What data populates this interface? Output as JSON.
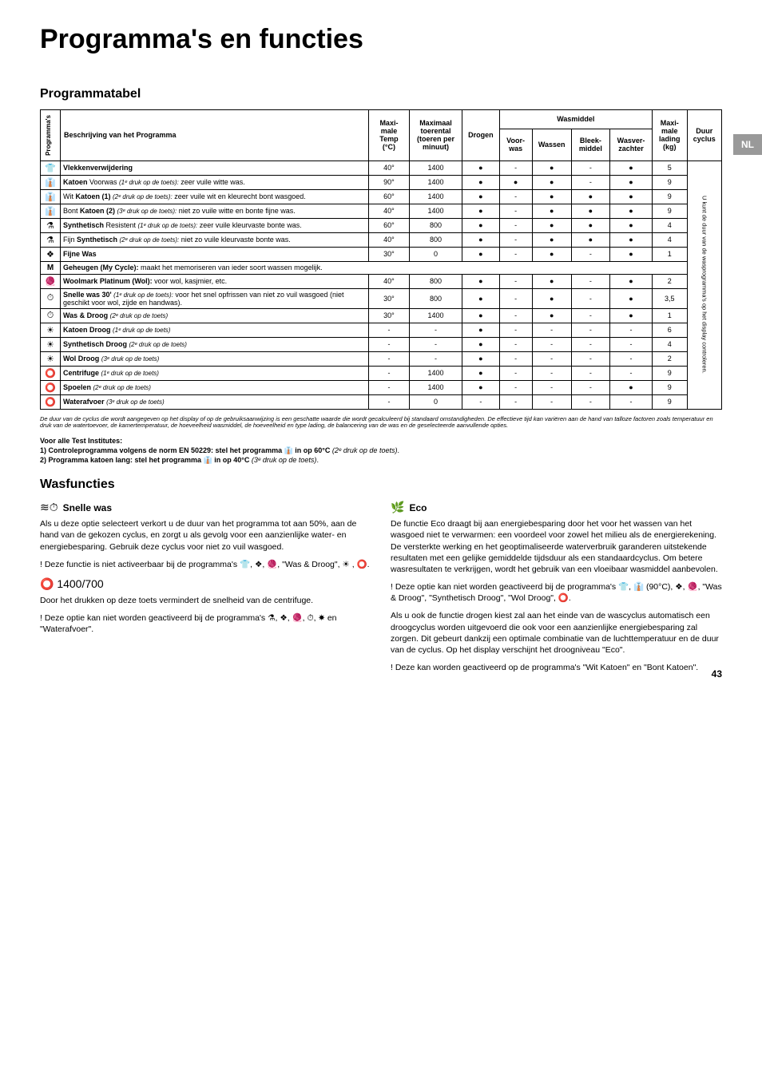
{
  "page_title": "Programma's en functies",
  "side_tab": "NL",
  "section_programmatabel": "Programmatabel",
  "headers": {
    "programmas": "Programma's",
    "beschrijving": "Beschrijving van het Programma",
    "max_temp_line1": "Maxi-",
    "max_temp_line2": "male",
    "max_temp_line3": "Temp",
    "max_temp_line4": "(°C)",
    "max_toer_line1": "Maximaal",
    "max_toer_line2": "toerental",
    "max_toer_line3": "(toeren per",
    "max_toer_line4": "minuut)",
    "drogen": "Drogen",
    "wasmiddel": "Wasmiddel",
    "voor_was": "Voor-\nwas",
    "wassen": "Wassen",
    "bleek_middel": "Bleek-\nmiddel",
    "wasver_zachter": "Wasver-\nzachter",
    "max_lading_line1": "Maxi-",
    "max_lading_line2": "male",
    "max_lading_line3": "lading",
    "max_lading_line4": "(kg)",
    "duur_cyclus": "Duur\ncyclus",
    "duur_side": "U kunt de duur van de wasprogramma's op het display controleren."
  },
  "rows": [
    {
      "icon": "👕",
      "desc": "<b>Vlekkenverwijdering</b>",
      "temp": "40°",
      "rpm": "1400",
      "drogen": "●",
      "voor": "-",
      "wassen": "●",
      "bleek": "-",
      "zachter": "●",
      "lading": "5"
    },
    {
      "icon": "👔",
      "desc": "<b>Katoen</b> Voorwas <i>(1ᵉ druk op de toets):</i> zeer vuile witte was.",
      "temp": "90°",
      "rpm": "1400",
      "drogen": "●",
      "voor": "●",
      "wassen": "●",
      "bleek": "-",
      "zachter": "●",
      "lading": "9"
    },
    {
      "icon": "👔",
      "desc": "Wit <b>Katoen (1)</b> <i>(2ᵉ druk op de toets):</i> zeer vuile wit en kleurecht bont wasgoed.",
      "temp": "60°",
      "rpm": "1400",
      "drogen": "●",
      "voor": "-",
      "wassen": "●",
      "bleek": "●",
      "zachter": "●",
      "lading": "9"
    },
    {
      "icon": "👔",
      "desc": "Bont <b>Katoen (2)</b> <i>(3ᵉ druk op de toets):</i> niet zo vuile witte en bonte fijne was.",
      "temp": "40°",
      "rpm": "1400",
      "drogen": "●",
      "voor": "-",
      "wassen": "●",
      "bleek": "●",
      "zachter": "●",
      "lading": "9"
    },
    {
      "icon": "⚗",
      "desc": "<b>Synthetisch</b> Resistent <i>(1ᵉ druk op de toets):</i> zeer vuile kleurvaste bonte was.",
      "temp": "60°",
      "rpm": "800",
      "drogen": "●",
      "voor": "-",
      "wassen": "●",
      "bleek": "●",
      "zachter": "●",
      "lading": "4"
    },
    {
      "icon": "⚗",
      "desc": "Fijn <b>Synthetisch</b> <i>(2ᵉ druk op de toets):</i> niet zo vuile kleurvaste bonte was.",
      "temp": "40°",
      "rpm": "800",
      "drogen": "●",
      "voor": "-",
      "wassen": "●",
      "bleek": "●",
      "zachter": "●",
      "lading": "4"
    },
    {
      "icon": "❖",
      "desc": "<b>Fijne Was</b>",
      "temp": "30°",
      "rpm": "0",
      "drogen": "●",
      "voor": "-",
      "wassen": "●",
      "bleek": "-",
      "zachter": "●",
      "lading": "1"
    },
    {
      "icon": "M",
      "desc": "<b>Geheugen (My Cycle):</b> maakt het memoriseren van ieder soort wassen mogelijk.",
      "span": true
    },
    {
      "icon": "🧶",
      "desc": "<b>Woolmark Platinum (Wol):</b> voor wol, kasjmier, etc.",
      "temp": "40°",
      "rpm": "800",
      "drogen": "●",
      "voor": "-",
      "wassen": "●",
      "bleek": "-",
      "zachter": "●",
      "lading": "2"
    },
    {
      "icon": "⏱",
      "desc": "<b>Snelle was 30'</b> <i>(1ᵉ druk op de toets):</i> voor het snel opfrissen van niet zo vuil wasgoed (niet geschikt voor wol, zijde en handwas).",
      "temp": "30°",
      "rpm": "800",
      "drogen": "●",
      "voor": "-",
      "wassen": "●",
      "bleek": "-",
      "zachter": "●",
      "lading": "3,5"
    },
    {
      "icon": "⏱",
      "desc": "<b>Was & Droog</b> <i>(2ᵉ druk op de toets)</i>",
      "temp": "30°",
      "rpm": "1400",
      "drogen": "●",
      "voor": "-",
      "wassen": "●",
      "bleek": "-",
      "zachter": "●",
      "lading": "1"
    },
    {
      "icon": "☀",
      "desc": "<b>Katoen Droog</b> <i>(1ᵉ druk op de toets)</i>",
      "temp": "-",
      "rpm": "-",
      "drogen": "●",
      "voor": "-",
      "wassen": "-",
      "bleek": "-",
      "zachter": "-",
      "lading": "6"
    },
    {
      "icon": "☀",
      "desc": "<b>Synthetisch Droog</b> <i>(2ᵉ druk op de toets)</i>",
      "temp": "-",
      "rpm": "-",
      "drogen": "●",
      "voor": "-",
      "wassen": "-",
      "bleek": "-",
      "zachter": "-",
      "lading": "4"
    },
    {
      "icon": "☀",
      "desc": "<b>Wol Droog</b> <i>(3ᵉ druk op de toets)</i>",
      "temp": "-",
      "rpm": "-",
      "drogen": "●",
      "voor": "-",
      "wassen": "-",
      "bleek": "-",
      "zachter": "-",
      "lading": "2"
    },
    {
      "icon": "⭕",
      "desc": "<b>Centrifuge</b> <i>(1ᵉ druk op de toets)</i>",
      "temp": "-",
      "rpm": "1400",
      "drogen": "●",
      "voor": "-",
      "wassen": "-",
      "bleek": "-",
      "zachter": "-",
      "lading": "9"
    },
    {
      "icon": "⭕",
      "desc": "<b>Spoelen</b> <i>(2ᵉ druk op de toets)</i>",
      "temp": "-",
      "rpm": "1400",
      "drogen": "●",
      "voor": "-",
      "wassen": "-",
      "bleek": "-",
      "zachter": "●",
      "lading": "9"
    },
    {
      "icon": "⭕",
      "desc": "<b>Waterafvoer</b> <i>(3ᵉ druk op de toets)</i>",
      "temp": "-",
      "rpm": "0",
      "drogen": "-",
      "voor": "-",
      "wassen": "-",
      "bleek": "-",
      "zachter": "-",
      "lading": "9"
    }
  ],
  "footnote": "De duur van de cyclus die wordt aangegeven op het display of op de gebruiksaanwijzing is een geschatte waarde die wordt gecalculeerd bij standaard omstandigheden. De effectieve tijd kan variëren aan de hand van talloze factoren zoals temperatuur en druk van de watertoevoer, de kamertemperatuur, de hoeveelheid wasmiddel, de hoeveelheid en type lading, de balancering van de was en de geselecteerde aanvullende opties.",
  "test_title": "Voor alle Test Institutes:",
  "test_line1": "1) Controleprogramma volgens de norm EN 50229: stel het programma 👔 in op 60°C (2ᵉ druk op de toets).",
  "test_line2": "2) Programma katoen lang: stel het programma 👔 in op 40°C (3ᵉ druk op de toets).",
  "wasfuncties_title": "Wasfuncties",
  "snelle_was": {
    "title": "Snelle was",
    "icon": "≋⏱",
    "p1": "Als u deze optie selecteert verkort u de duur van het programma tot aan 50%, aan de hand van de gekozen cyclus, en zorgt u als gevolg voor een aanzienlijke water- en energiebesparing. Gebruik deze cyclus voor niet zo vuil wasgoed.",
    "p2": "! Deze functie is niet activeerbaar bij de programma's 👕, ❖, 🧶, \"Was & Droog\", ☀ , ⭕."
  },
  "rpm_option": {
    "icon": "⭕ 1400/700",
    "p1": "Door het drukken op deze toets vermindert de snelheid van de centrifuge.",
    "p2": "! Deze optie kan niet worden geactiveerd bij de programma's ⚗, ❖, 🧶, ⏱, ☀ en \"Waterafvoer\"."
  },
  "eco": {
    "title": "Eco",
    "icon": "🌿",
    "p1": "De functie Eco draagt bij aan energiebesparing door het voor het wassen van het wasgoed niet te verwarmen: een voordeel voor zowel het milieu als de energierekening. De versterkte werking en het geoptimaliseerde waterverbruik garanderen uitstekende resultaten met een gelijke gemiddelde tijdsduur als een standaardcyclus. Om betere wasresultaten te verkrijgen, wordt het gebruik van een vloeibaar wasmiddel aanbevolen.",
    "p2": "! Deze optie kan niet worden geactiveerd bij de programma's 👕, 👔 (90°C), ❖, 🧶, \"Was & Droog\", \"Synthetisch Droog\", \"Wol Droog\", ⭕.",
    "p3": "Als u ook de functie drogen kiest zal aan het einde van de wascyclus automatisch een droogcyclus worden uitgevoerd die ook voor een aanzienlijke energiebesparing zal zorgen. Dit gebeurt dankzij een optimale combinatie van de luchttemperatuur en de duur van de cyclus. Op het display verschijnt het droogniveau \"Eco\".",
    "p4": "! Deze kan worden geactiveerd op de programma's \"Wit Katoen\" en \"Bont Katoen\"."
  },
  "page_number": "43"
}
